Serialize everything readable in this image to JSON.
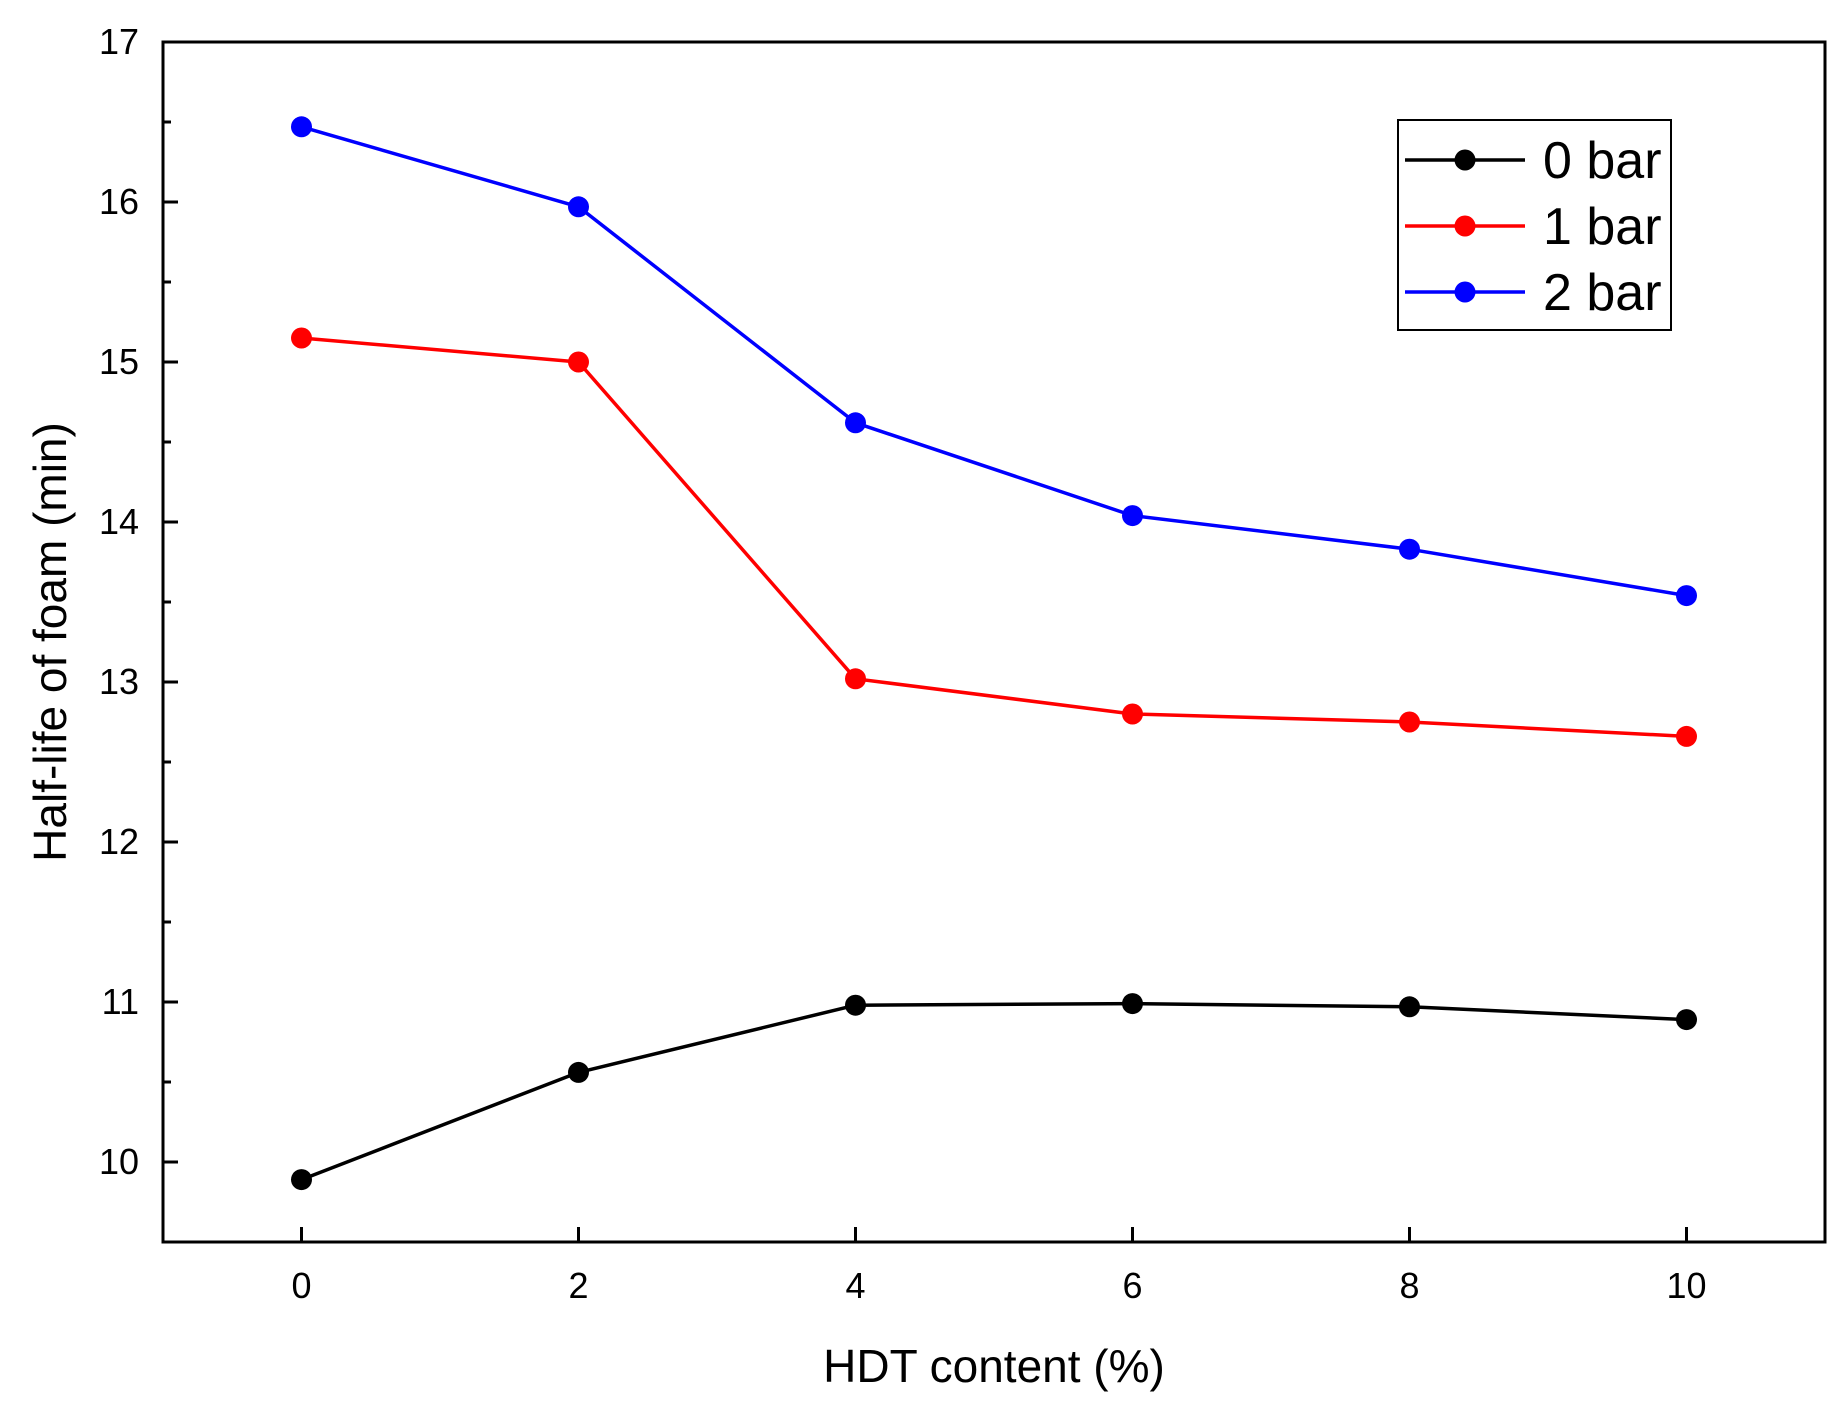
{
  "chart_data": {
    "type": "line",
    "title": "",
    "xlabel": "HDT content (%)",
    "ylabel": "Half-life of foam (min)",
    "xlim": [
      -1,
      11
    ],
    "ylim": [
      9.5,
      17
    ],
    "xticks": [
      0,
      2,
      4,
      6,
      8,
      10
    ],
    "xtick_labels": [
      "0",
      "2",
      "4",
      "6",
      "8",
      "10"
    ],
    "yticks": [
      10,
      11,
      12,
      13,
      14,
      15,
      16,
      17
    ],
    "ytick_labels": [
      "10",
      "11",
      "12",
      "13",
      "14",
      "15",
      "16",
      "17"
    ],
    "x": [
      0,
      2,
      4,
      6,
      8,
      10
    ],
    "series": [
      {
        "name": "0 bar",
        "color": "#000000",
        "values": [
          9.89,
          10.56,
          10.98,
          10.99,
          10.97,
          10.89
        ]
      },
      {
        "name": "1 bar",
        "color": "#ff0000",
        "values": [
          15.15,
          15.0,
          13.02,
          12.8,
          12.75,
          12.66
        ]
      },
      {
        "name": "2 bar",
        "color": "#0000ff",
        "values": [
          16.47,
          15.97,
          14.62,
          14.04,
          13.83,
          13.54
        ]
      }
    ],
    "grid": false,
    "legend": "top-right"
  }
}
